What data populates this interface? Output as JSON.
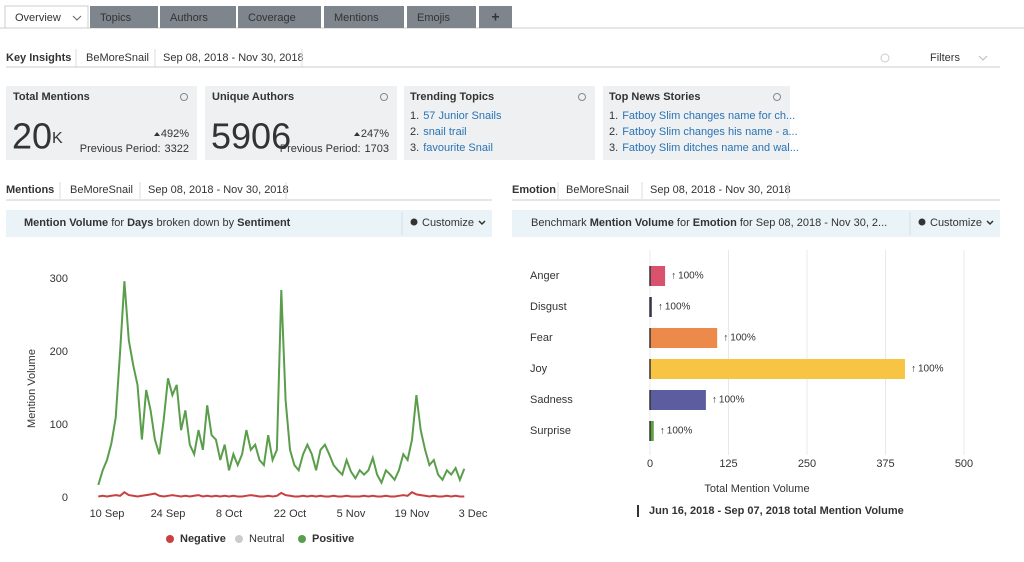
{
  "tabs": [
    "Overview",
    "Topics",
    "Authors",
    "Coverage",
    "Mentions",
    "Emojis",
    "+"
  ],
  "key_insights": {
    "title": "Key Insights",
    "brand": "BeMoreSnail",
    "date_range": "Sep 08, 2018 - Nov 30, 2018",
    "filters": "Filters"
  },
  "cards": [
    {
      "title": "Total Mentions",
      "value": "20",
      "unit": "K",
      "change": "492%",
      "previous_label": "Previous Period:",
      "previous_value": 3322
    },
    {
      "title": "Unique Authors",
      "value": "5906",
      "change": "247%",
      "previous_label": "Previous Period:",
      "previous_value": 1703
    }
  ],
  "lists": [
    {
      "title": "Trending Topics",
      "items": [
        {
          "rank": "1.",
          "text": "57 Junior Snails"
        },
        {
          "rank": "2.",
          "text": "snail trail"
        },
        {
          "rank": "3.",
          "text": "favourite Snail"
        }
      ]
    },
    {
      "title": "Top News Stories",
      "items": [
        {
          "rank": "1.",
          "text": "Fatboy Slim changes name for ch..."
        },
        {
          "rank": "2.",
          "text": "Fatboy Slim changes his name - a..."
        },
        {
          "rank": "3.",
          "text": "Fatboy Slim ditches name and wal..."
        }
      ]
    }
  ],
  "panels": [
    {
      "title": "Mentions",
      "brand": "BeMoreSnail",
      "date_range": "Sep 08, 2018 - Nov 30, 2018",
      "customize": "Customize",
      "subtitle": [
        {
          "text": "Mention Volume",
          "bold": true
        },
        {
          "text": " for ",
          "bold": false
        },
        {
          "text": "Days",
          "bold": true
        },
        {
          "text": " broken down by ",
          "bold": false
        },
        {
          "text": "Sentiment",
          "bold": true
        }
      ]
    },
    {
      "title": "Emotion",
      "brand": "BeMoreSnail",
      "date_range": "Sep 08, 2018 - Nov 30, 2018",
      "customize": "Customize",
      "subtitle": [
        {
          "text": "Benchmark ",
          "bold": false
        },
        {
          "text": "Mention Volume",
          "bold": true
        },
        {
          "text": " for ",
          "bold": false
        },
        {
          "text": "Emotion",
          "bold": true
        },
        {
          "text": " for Sep 08, 2018 - Nov 30, 2...",
          "bold": false
        }
      ]
    }
  ],
  "chart_data": [
    {
      "type": "line",
      "ylabel": "Mention Volume",
      "ylim": [
        0,
        300
      ],
      "yticks": [
        0,
        100,
        200,
        300
      ],
      "grid": false,
      "categories": [
        null,
        null,
        "10 Sep",
        null,
        null,
        null,
        null,
        null,
        null,
        null,
        null,
        null,
        null,
        null,
        null,
        null,
        "24 Sep",
        null,
        null,
        null,
        null,
        null,
        null,
        null,
        null,
        null,
        null,
        null,
        null,
        null,
        "8 Oct",
        null,
        null,
        null,
        null,
        null,
        null,
        null,
        null,
        null,
        null,
        null,
        null,
        null,
        "22 Oct",
        null,
        null,
        null,
        null,
        null,
        null,
        null,
        null,
        null,
        null,
        null,
        null,
        null,
        "5 Nov",
        null,
        null,
        null,
        null,
        null,
        null,
        null,
        null,
        null,
        null,
        null,
        null,
        null,
        "19 Nov",
        null,
        null,
        null,
        null,
        null,
        null,
        null,
        null,
        null,
        null,
        null,
        null,
        null,
        "3 Dec"
      ],
      "series": [
        {
          "name": "Negative",
          "color": "#c94040",
          "hidden": false,
          "values": [
            2,
            3,
            2,
            3,
            4,
            3,
            8,
            4,
            3,
            2,
            3,
            4,
            5,
            6,
            3,
            2,
            3,
            4,
            3,
            2,
            3,
            2,
            3,
            4,
            2,
            3,
            2,
            3,
            2,
            3,
            2,
            3,
            2,
            2,
            3,
            4,
            3,
            2,
            2,
            3,
            2,
            3,
            7,
            4,
            3,
            2,
            2,
            3,
            2,
            3,
            2,
            3,
            2,
            2,
            3,
            2,
            2,
            3,
            2,
            2,
            2,
            3,
            2,
            3,
            2,
            2,
            3,
            2,
            2,
            3,
            4,
            3,
            8,
            5,
            4,
            3,
            2,
            3,
            2,
            2,
            3,
            2,
            3,
            2,
            2,
            null,
            null
          ]
        },
        {
          "name": "Neutral",
          "color": "#cccccc",
          "hidden": true,
          "values": [
            null,
            null,
            null,
            null,
            null,
            null,
            null,
            null,
            null,
            null,
            null,
            null,
            null,
            null,
            null,
            null,
            null,
            null,
            null,
            null,
            null,
            null,
            null,
            null,
            null,
            null,
            null,
            null,
            null,
            null,
            null,
            null,
            null,
            null,
            null,
            null,
            null,
            null,
            null,
            null,
            null,
            null,
            null,
            null,
            null,
            null,
            null,
            null,
            null,
            null,
            null,
            null,
            null,
            null,
            null,
            null,
            null,
            null,
            null,
            null,
            null,
            null,
            null,
            null,
            null,
            null,
            null,
            null,
            null,
            null,
            null,
            null,
            null,
            null,
            null,
            null,
            null,
            null,
            null,
            null,
            null,
            null,
            null,
            null,
            null,
            null,
            null
          ]
        },
        {
          "name": "Positive",
          "color": "#5a9e4b",
          "hidden": false,
          "values": [
            18,
            38,
            52,
            75,
            110,
            200,
            297,
            216,
            182,
            155,
            80,
            148,
            120,
            80,
            60,
            107,
            164,
            141,
            155,
            93,
            120,
            73,
            60,
            93,
            66,
            127,
            86,
            80,
            52,
            73,
            38,
            60,
            45,
            60,
            93,
            66,
            73,
            52,
            45,
            86,
            52,
            66,
            285,
            134,
            66,
            45,
            38,
            60,
            73,
            60,
            38,
            66,
            73,
            60,
            45,
            38,
            32,
            52,
            36,
            27,
            38,
            32,
            38,
            55,
            32,
            21,
            38,
            32,
            25,
            38,
            60,
            52,
            80,
            141,
            93,
            66,
            45,
            52,
            32,
            25,
            38,
            32,
            41,
            25,
            40,
            null,
            null
          ]
        }
      ]
    },
    {
      "type": "hbar",
      "xlabel": "Total Mention Volume",
      "xlim": [
        0,
        500
      ],
      "xticks": [
        0,
        125,
        250,
        375,
        500
      ],
      "grid": true,
      "categories": [
        "Anger",
        "Disgust",
        "Fear",
        "Joy",
        "Sadness",
        "Surprise"
      ],
      "values": [
        24,
        3,
        107,
        406,
        89,
        6
      ],
      "colors": [
        "#d9536f",
        "#4b4a6b",
        "#ec8a4b",
        "#f7c443",
        "#5b5da0",
        "#5ea043"
      ],
      "changes": [
        "100%",
        "100%",
        "100%",
        "100%",
        "100%",
        "100%"
      ],
      "footer": "Jun 16, 2018 - Sep 07, 2018 total Mention Volume"
    }
  ]
}
